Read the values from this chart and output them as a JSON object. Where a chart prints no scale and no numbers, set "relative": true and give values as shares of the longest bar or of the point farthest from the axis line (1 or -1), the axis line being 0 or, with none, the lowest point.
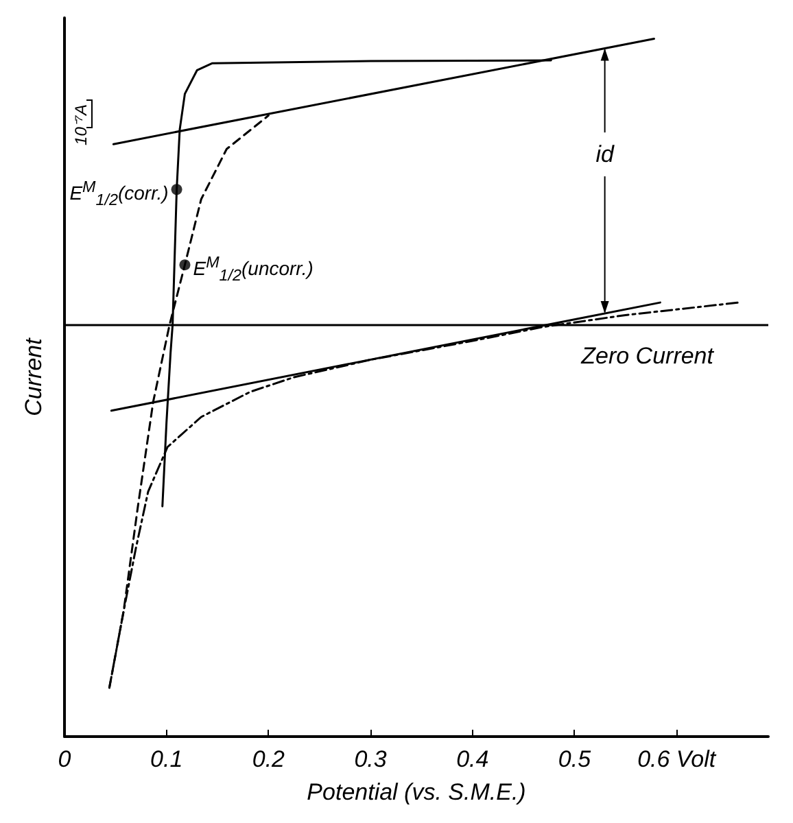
{
  "chart_data": {
    "type": "line",
    "xlabel": "Potential (vs. S.M.E.)",
    "ylabel": "Current",
    "relative": true,
    "xlim": [
      0,
      0.69
    ],
    "xticks": [
      0,
      0.1,
      0.2,
      0.3,
      0.4,
      0.5,
      {
        "value": 0.6,
        "label": "0.6 Volt"
      }
    ],
    "grid": false,
    "legend": false,
    "marker": "none",
    "series": [
      {
        "color": "#000000",
        "line_style": "solid",
        "x": [
          0.096,
          0.1,
          0.104,
          0.106,
          0.11,
          0.113,
          0.118,
          0.13,
          0.145,
          0.3,
          0.477
        ],
        "values": [
          0.33,
          0.45,
          0.55,
          0.59,
          0.784,
          0.87,
          0.921,
          0.955,
          0.965,
          0.968,
          0.969
        ]
      },
      {
        "color": "#000000",
        "line_style": "dashed",
        "x": [
          0.044,
          0.058,
          0.072,
          0.087,
          0.103,
          0.118,
          0.134,
          0.159,
          0.2
        ],
        "values": [
          0.07,
          0.18,
          0.33,
          0.48,
          0.59,
          0.676,
          0.77,
          0.842,
          0.89
        ]
      },
      {
        "color": "#000000",
        "line_style": "dotted",
        "x": [
          0.044,
          0.058,
          0.07,
          0.082,
          0.101,
          0.134,
          0.182,
          0.225,
          0.3,
          0.4,
          0.469,
          0.55,
          0.661
        ],
        "values": [
          0.07,
          0.18,
          0.27,
          0.351,
          0.415,
          0.458,
          0.494,
          0.515,
          0.54,
          0.567,
          0.587,
          0.604,
          0.622
        ]
      },
      {
        "color": "#000000",
        "line_style": "solid",
        "x": [
          0.048,
          0.578
        ],
        "values": [
          0.849,
          1.0
        ]
      },
      {
        "color": "#000000",
        "line_style": "solid",
        "x": [
          0.046,
          0.584
        ],
        "values": [
          0.467,
          0.622
        ]
      },
      {
        "type": "scatter",
        "name": "E$^{M}$$_{1/2}$(corr.)",
        "marker": "circle",
        "color": "#000000",
        "x": [
          0.11
        ],
        "values": [
          0.784
        ]
      },
      {
        "type": "scatter",
        "name": "E$^{M}$$_{1/2}$(uncorr.)",
        "marker": "circle",
        "color": "#000000",
        "x": [
          0.118
        ],
        "values": [
          0.676
        ]
      }
    ],
    "ref_lines": [
      {
        "axis": "y",
        "value": 0.59,
        "label": "Zero Current",
        "color": "#000000"
      }
    ],
    "annotations": [
      "10⁻⁷A",
      "id"
    ]
  }
}
